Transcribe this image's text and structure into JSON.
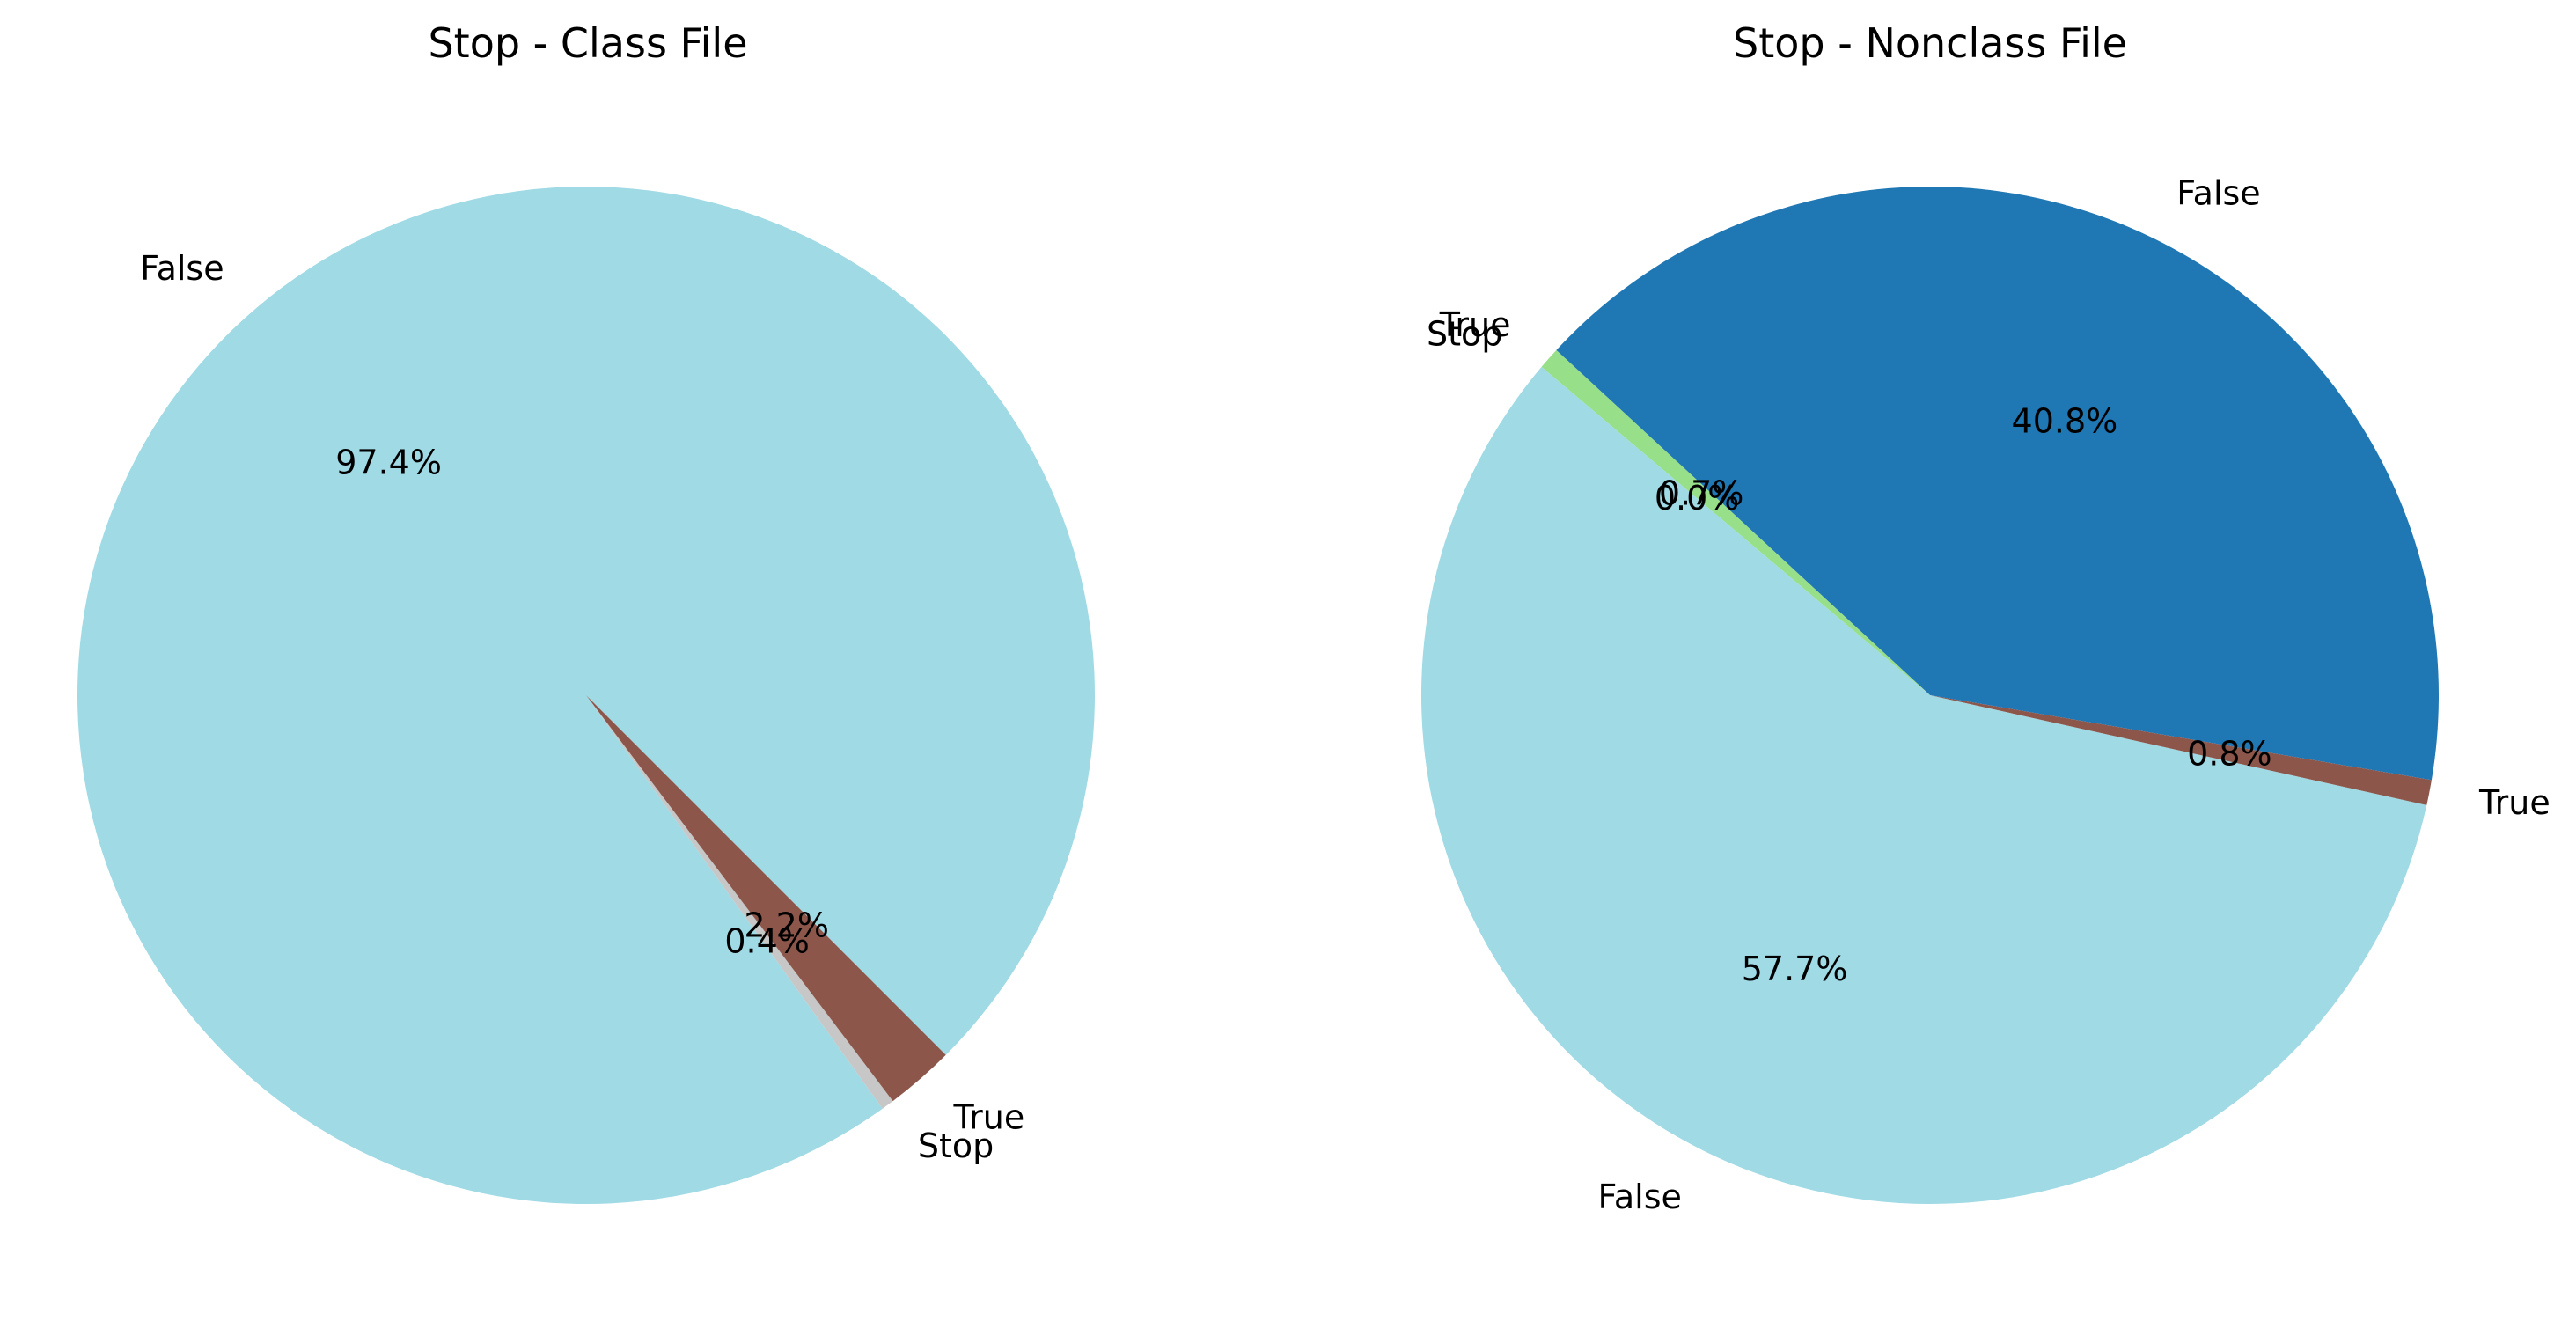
{
  "chart_data": [
    {
      "type": "pie",
      "title": "Stop - Class File",
      "slices": [
        {
          "label": "False",
          "value": 97.4,
          "pct_label": "97.4%",
          "color": "#9fdae5"
        },
        {
          "label": "Stop",
          "value": 0.4,
          "pct_label": "0.4%",
          "color": "#c7c7c7"
        },
        {
          "label": "True",
          "value": 2.2,
          "pct_label": "2.2%",
          "color": "#8c564b"
        }
      ],
      "start_angle_deg": 315,
      "direction": "counterclockwise"
    },
    {
      "type": "pie",
      "title": "Stop - Nonclass File",
      "slices": [
        {
          "label": "False",
          "value": 40.8,
          "pct_label": "40.8%",
          "color": "#1f77b4"
        },
        {
          "label": "True",
          "value": 0.7,
          "pct_label": "0.7%",
          "color": "#98df8a"
        },
        {
          "label": "Stop",
          "value": 0.0,
          "pct_label": "0.0%",
          "color": "#c7c7c7"
        },
        {
          "label": "False",
          "value": 57.7,
          "pct_label": "57.7%",
          "color": "#9fdae5"
        },
        {
          "label": "True",
          "value": 0.8,
          "pct_label": "0.8%",
          "color": "#8c564b"
        }
      ],
      "start_angle_deg": 350.4,
      "direction": "counterclockwise"
    }
  ]
}
